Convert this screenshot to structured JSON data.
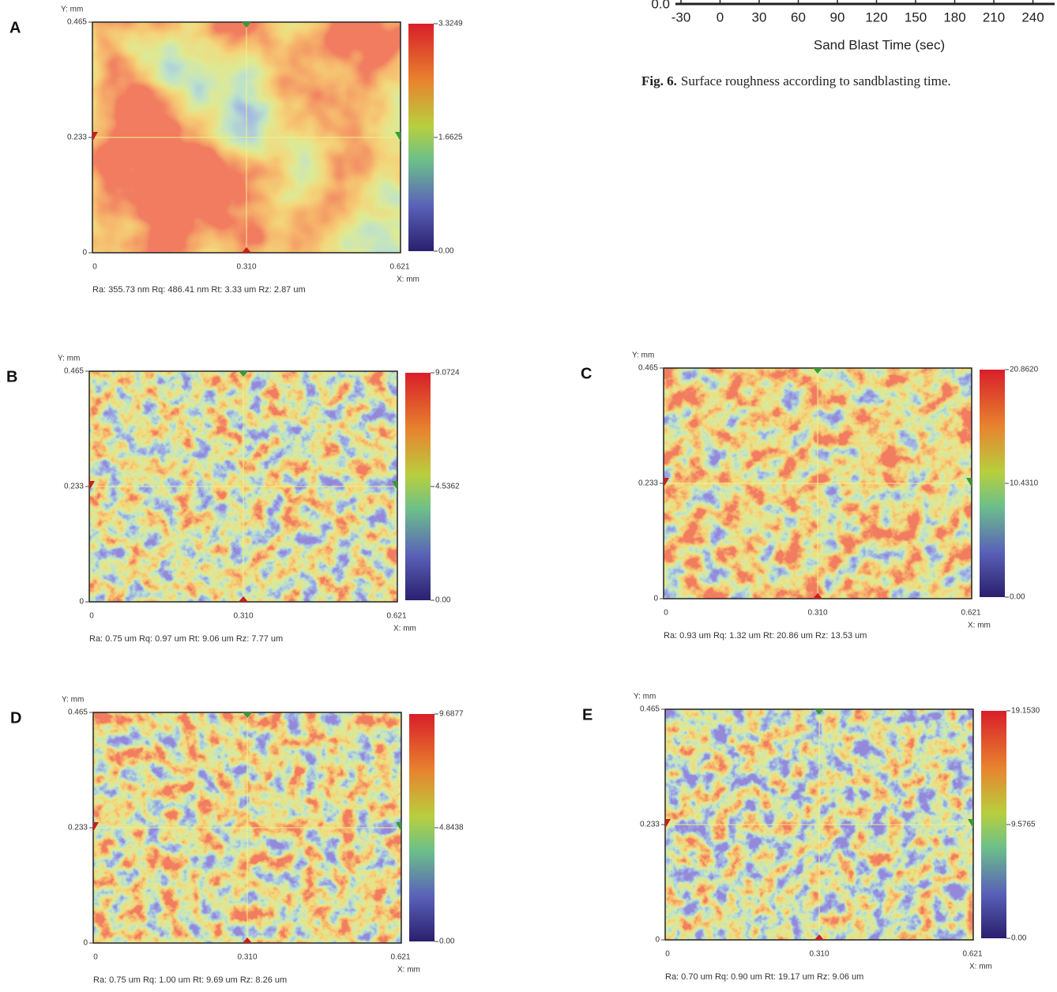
{
  "figure_top": {
    "y_tick": "0.0",
    "x_ticks": [
      "-30",
      "0",
      "30",
      "60",
      "90",
      "120",
      "150",
      "180",
      "210",
      "240"
    ],
    "x_title": "Sand Blast Time (sec)"
  },
  "caption": {
    "label": "Fig. 6.",
    "text": "Surface roughness according to sandblasting time."
  },
  "panels": [
    {
      "label": "A",
      "y_axis": "Y: mm",
      "y_ticks": [
        "0.465",
        "0.233",
        "0"
      ],
      "x_ticks": [
        "0",
        "0.310",
        "0.621"
      ],
      "x_axis": "X: mm",
      "scale": [
        "3.3249",
        "1.6625",
        "0.00"
      ],
      "stats": "Ra: 355.73 nm   Rq: 486.41 nm   Rt: 3.33 um   Rz: 2.87 um"
    },
    {
      "label": "B",
      "y_axis": "Y: mm",
      "y_ticks": [
        "0.465",
        "0.233",
        "0"
      ],
      "x_ticks": [
        "0",
        "0.310",
        "0.621"
      ],
      "x_axis": "X: mm",
      "scale": [
        "9.0724",
        "4.5362",
        "0.00"
      ],
      "stats": "Ra: 0.75 um   Rq: 0.97 um   Rt: 9.06 um   Rz: 7.77 um"
    },
    {
      "label": "C",
      "y_axis": "Y: mm",
      "y_ticks": [
        "0.465",
        "0.233",
        "0"
      ],
      "x_ticks": [
        "0",
        "0.310",
        "0.621"
      ],
      "x_axis": "X: mm",
      "scale": [
        "20.8620",
        "10.4310",
        "0.00"
      ],
      "stats": "Ra: 0.93 um   Rq: 1.32 um   Rt: 20.86 um   Rz: 13.53 um"
    },
    {
      "label": "D",
      "y_axis": "Y: mm",
      "y_ticks": [
        "0.465",
        "0.233",
        "0"
      ],
      "x_ticks": [
        "0",
        "0.310",
        "0.621"
      ],
      "x_axis": "X: mm",
      "scale": [
        "9.6877",
        "4.8438",
        "0.00"
      ],
      "stats": "Ra: 0.75 um   Rq: 1.00 um   Rt: 9.69 um   Rz: 8.26 um"
    },
    {
      "label": "E",
      "y_axis": "Y: mm",
      "y_ticks": [
        "0.465",
        "0.233",
        "0"
      ],
      "x_ticks": [
        "0",
        "0.310",
        "0.621"
      ],
      "x_axis": "X: mm",
      "scale": [
        "19.1530",
        "9.5765",
        "0.00"
      ],
      "stats": "Ra: 0.70 um   Rq: 0.90 um   Rt: 19.17 um   Rz: 9.06 um"
    }
  ]
}
